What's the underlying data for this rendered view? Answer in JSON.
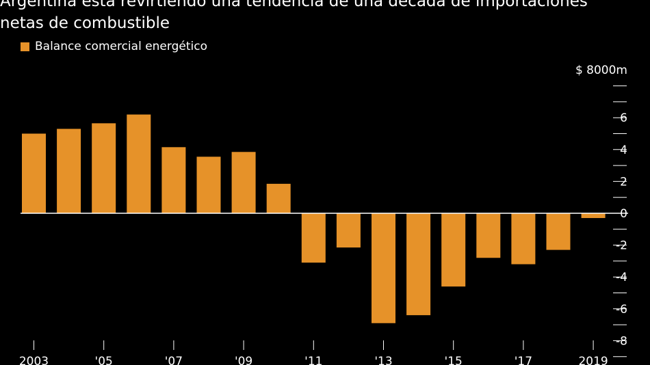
{
  "title_lines": [
    "Argentina está revirtiendo una tendencia de una década de importaciones",
    "netas de combustible"
  ],
  "colors": {
    "bar": "#E69229",
    "background": "#000000",
    "text": "#FFFFFF"
  },
  "chart_data": {
    "type": "bar",
    "title": "Argentina está revirtiendo una tendencia de una década de importaciones netas de combustible",
    "legend": [
      "Balance comercial energético"
    ],
    "ylabel": "$8000m",
    "ylim": [
      -9,
      8
    ],
    "yticks": [
      -8,
      -6,
      -4,
      -2,
      0,
      2,
      4,
      6
    ],
    "ytick_labels": [
      "-8",
      "-6",
      "-4",
      "-2",
      "0",
      "2",
      "4",
      "6"
    ],
    "y_unit_label": "$ 8000m",
    "categories": [
      "2003",
      "2004",
      "2005",
      "2006",
      "2007",
      "2008",
      "2009",
      "2010",
      "2011",
      "2012",
      "2013",
      "2014",
      "2015",
      "2016",
      "2017",
      "2018",
      "2019"
    ],
    "xtick_labels": [
      "2003",
      "",
      "'05",
      "",
      "'07",
      "",
      "'09",
      "",
      "'11",
      "",
      "'13",
      "",
      "'15",
      "",
      "'17",
      "",
      "2019"
    ],
    "series": [
      {
        "name": "Balance comercial energético",
        "values": [
          5.0,
          5.3,
          5.65,
          6.2,
          4.15,
          3.55,
          3.85,
          1.85,
          -3.1,
          -2.15,
          -6.9,
          -6.4,
          -4.6,
          -2.8,
          -3.2,
          -2.3,
          -0.3
        ]
      }
    ]
  }
}
